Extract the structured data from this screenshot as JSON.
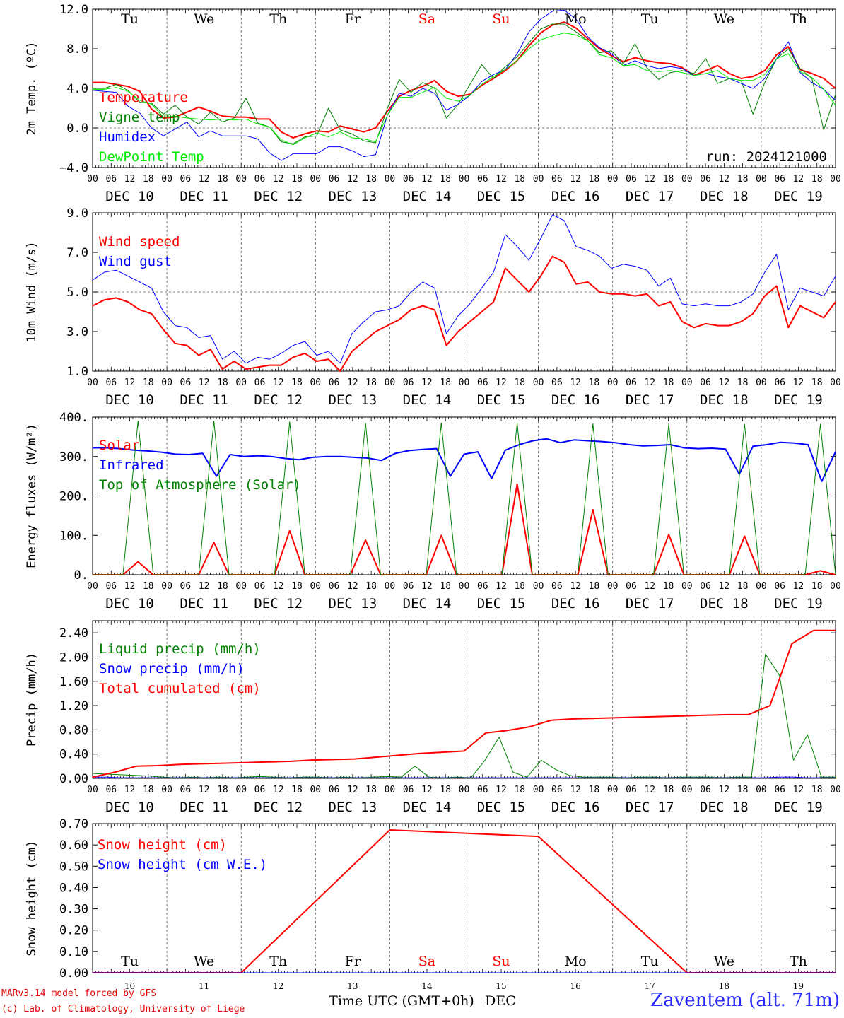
{
  "chart_data": [
    {
      "type": "line",
      "id": "temp",
      "ylabel": "2m Temp. (ºC)",
      "ylim": [
        -4,
        12
      ],
      "yticks": [
        "12.0",
        "8.0",
        "4.0",
        "0.0",
        "−4.0"
      ],
      "ytick_values": [
        12,
        8,
        4,
        0,
        -4
      ],
      "dashed_y": 0,
      "run_label": "run: 2024121000",
      "series": [
        {
          "name": "Temperature",
          "color": "#ff0000",
          "width": 2,
          "values": [
            4.6,
            4.6,
            4.4,
            4.2,
            3.7,
            1.9,
            1.0,
            1.1,
            1.6,
            2.1,
            1.7,
            1.2,
            1.1,
            1.1,
            0.9,
            0.9,
            -0.4,
            -1.0,
            -0.6,
            -0.3,
            -0.4,
            0.2,
            -0.1,
            -0.4,
            0.0,
            1.7,
            3.2,
            3.8,
            4.2,
            4.8,
            3.7,
            3.2,
            3.4,
            4.3,
            5.0,
            5.8,
            6.8,
            8.3,
            9.6,
            10.4,
            10.7,
            10.1,
            9.0,
            8.0,
            7.3,
            6.7,
            7.1,
            6.8,
            6.6,
            6.5,
            6.1,
            5.3,
            5.8,
            6.3,
            5.5,
            5.0,
            5.2,
            5.8,
            7.4,
            8.2,
            5.9,
            5.5,
            5.0,
            4.0
          ]
        },
        {
          "name": "Vigne temp",
          "color": "#008000",
          "width": 1,
          "values": [
            4.0,
            4.0,
            4.4,
            3.8,
            2.6,
            2.5,
            1.4,
            2.3,
            1.1,
            0.4,
            1.6,
            0.6,
            1.0,
            3.0,
            0.5,
            0.1,
            -1.4,
            -1.6,
            -0.9,
            -0.8,
            2.0,
            -0.2,
            -0.6,
            -1.3,
            -1.5,
            2.0,
            4.9,
            3.6,
            4.6,
            4.0,
            1.0,
            2.4,
            4.4,
            6.4,
            5.0,
            6.2,
            7.2,
            8.6,
            10.0,
            10.5,
            10.5,
            9.7,
            8.8,
            7.6,
            7.8,
            6.5,
            8.5,
            6.1,
            4.9,
            5.6,
            5.8,
            5.5,
            7.0,
            4.5,
            5.0,
            4.8,
            1.4,
            4.6,
            7.0,
            8.0,
            6.0,
            5.0,
            -0.2,
            3.4
          ]
        },
        {
          "name": "Humidex",
          "color": "#0000ff",
          "width": 1,
          "values": [
            3.8,
            3.7,
            3.6,
            2.2,
            1.5,
            0.0,
            -0.8,
            -0.1,
            0.6,
            -0.9,
            -0.3,
            -0.8,
            -0.8,
            -0.8,
            -1.1,
            -2.5,
            -3.3,
            -2.6,
            -2.6,
            -2.6,
            -1.9,
            -1.9,
            -2.3,
            -2.9,
            -2.7,
            1.3,
            3.5,
            3.2,
            4.0,
            3.5,
            1.8,
            2.4,
            3.3,
            4.7,
            5.4,
            5.9,
            7.5,
            9.7,
            11.0,
            11.8,
            11.9,
            11.0,
            9.2,
            8.1,
            7.5,
            6.3,
            6.8,
            6.3,
            6.0,
            6.2,
            6.0,
            5.3,
            5.5,
            5.2,
            5.0,
            4.5,
            4.0,
            5.0,
            7.0,
            8.7,
            5.6,
            4.6,
            3.9,
            2.8
          ]
        },
        {
          "name": "DewPoint Temp",
          "color": "#00ee00",
          "width": 1,
          "values": [
            3.9,
            3.9,
            4.1,
            3.7,
            2.8,
            2.4,
            1.1,
            1.2,
            1.0,
            0.9,
            0.8,
            0.9,
            0.8,
            0.9,
            0.4,
            0.1,
            -1.2,
            -1.7,
            -1.0,
            -0.5,
            -0.9,
            -0.4,
            -1.0,
            -1.1,
            -1.4,
            1.3,
            3.1,
            3.1,
            3.6,
            4.1,
            3.0,
            2.7,
            3.3,
            4.4,
            5.2,
            5.9,
            6.8,
            8.0,
            8.9,
            9.3,
            9.6,
            9.4,
            8.8,
            7.4,
            7.1,
            6.3,
            6.4,
            5.8,
            5.7,
            5.8,
            5.6,
            5.3,
            5.5,
            5.8,
            5.0,
            4.8,
            4.8,
            5.4,
            7.0,
            7.5,
            5.7,
            5.1,
            3.9,
            2.3
          ]
        }
      ]
    },
    {
      "type": "line",
      "id": "wind",
      "ylabel": "10m Wind (m/s)",
      "ylim": [
        1,
        9
      ],
      "yticks": [
        "9.0",
        "7.0",
        "5.0",
        "3.0",
        "1.0"
      ],
      "ytick_values": [
        9,
        7,
        5,
        3,
        1
      ],
      "dashed_y": 5,
      "series": [
        {
          "name": "Wind speed",
          "color": "#ff0000",
          "width": 2,
          "values": [
            4.3,
            4.6,
            4.7,
            4.5,
            4.1,
            3.9,
            3.1,
            2.4,
            2.3,
            1.8,
            2.1,
            1.1,
            1.5,
            1.1,
            1.2,
            1.3,
            1.3,
            1.7,
            1.9,
            1.5,
            1.6,
            1.0,
            2.0,
            2.5,
            3.0,
            3.3,
            3.6,
            4.1,
            4.3,
            4.1,
            2.3,
            3.0,
            3.5,
            4.0,
            4.5,
            6.2,
            5.6,
            5.0,
            5.8,
            6.8,
            6.5,
            5.4,
            5.5,
            5.0,
            4.9,
            4.9,
            4.8,
            4.9,
            4.3,
            4.5,
            3.5,
            3.2,
            3.4,
            3.3,
            3.3,
            3.5,
            3.9,
            4.8,
            5.3,
            3.2,
            4.3,
            4.0,
            3.7,
            4.5
          ]
        },
        {
          "name": "Wind gust",
          "color": "#0000ff",
          "width": 1,
          "values": [
            5.6,
            6.0,
            6.1,
            5.8,
            5.5,
            5.2,
            4.0,
            3.3,
            3.2,
            2.7,
            2.8,
            1.6,
            2.0,
            1.4,
            1.7,
            1.6,
            1.9,
            2.3,
            2.5,
            1.8,
            2.0,
            1.4,
            2.9,
            3.5,
            4.0,
            4.1,
            4.3,
            5.0,
            5.5,
            5.2,
            2.9,
            3.8,
            4.4,
            5.2,
            6.0,
            7.9,
            7.3,
            6.6,
            7.7,
            8.9,
            8.6,
            7.3,
            7.1,
            6.8,
            6.2,
            6.4,
            6.3,
            6.1,
            5.3,
            5.7,
            4.4,
            4.3,
            4.4,
            4.3,
            4.3,
            4.5,
            4.9,
            6.0,
            6.9,
            4.1,
            5.2,
            5.0,
            4.8,
            5.8
          ]
        }
      ]
    },
    {
      "type": "line",
      "id": "flux",
      "ylabel": "Energy fluxes (W/m²)",
      "ylim": [
        0,
        400
      ],
      "yticks": [
        "400.",
        "300.",
        "200.",
        "100.",
        "0."
      ],
      "ytick_values": [
        400,
        300,
        200,
        100,
        0
      ],
      "series": [
        {
          "name": "Solar",
          "color": "#ff0000",
          "width": 2,
          "values": [
            0,
            0,
            0,
            33,
            0,
            0,
            0,
            0,
            82,
            0,
            0,
            0,
            0,
            112,
            0,
            0,
            0,
            0,
            88,
            0,
            0,
            0,
            0,
            100,
            0,
            0,
            0,
            0,
            230,
            0,
            0,
            0,
            0,
            165,
            0,
            0,
            0,
            0,
            102,
            0,
            0,
            0,
            0,
            98,
            0,
            0,
            0,
            0,
            10,
            0
          ]
        },
        {
          "name": "Infrared",
          "color": "#0000ff",
          "width": 2,
          "values": [
            322,
            322,
            320,
            316,
            314,
            311,
            306,
            305,
            308,
            250,
            305,
            300,
            302,
            300,
            295,
            292,
            298,
            300,
            300,
            298,
            296,
            290,
            308,
            315,
            318,
            320,
            250,
            306,
            312,
            244,
            316,
            330,
            340,
            345,
            335,
            342,
            340,
            338,
            335,
            330,
            327,
            328,
            330,
            322,
            320,
            321,
            319,
            255,
            326,
            330,
            336,
            334,
            330,
            237,
            312
          ]
        },
        {
          "name": "Top of Atmosphere (Solar)",
          "color": "#008000",
          "width": 1,
          "values": [
            0,
            0,
            0,
            390,
            0,
            0,
            0,
            0,
            390,
            0,
            0,
            0,
            0,
            388,
            0,
            0,
            0,
            0,
            385,
            0,
            0,
            0,
            0,
            385,
            0,
            0,
            0,
            0,
            385,
            0,
            0,
            0,
            0,
            383,
            0,
            0,
            0,
            0,
            383,
            0,
            0,
            0,
            0,
            382,
            0,
            0,
            0,
            0,
            382,
            0
          ]
        }
      ]
    },
    {
      "type": "line",
      "id": "precip",
      "ylabel": "Precip (mm/h)",
      "ylim": [
        0,
        2.6
      ],
      "yticks": [
        "2.40",
        "2.00",
        "1.60",
        "1.20",
        "0.80",
        "0.40",
        "0.00"
      ],
      "ytick_values": [
        2.4,
        2.0,
        1.6,
        1.2,
        0.8,
        0.4,
        0.0
      ],
      "series": [
        {
          "name": "Liquid precip (mm/h)",
          "color": "#008000",
          "width": 1,
          "values": [
            0.08,
            0.07,
            0.06,
            0.05,
            0.04,
            0.02,
            0.01,
            0.02,
            0.01,
            0.02,
            0.01,
            0.02,
            0.03,
            0.02,
            0.01,
            0.02,
            0.02,
            0.01,
            0.02,
            0.01,
            0.02,
            0.03,
            0.02,
            0.2,
            0.02,
            0.01,
            0.02,
            0.01,
            0.3,
            0.68,
            0.1,
            0.02,
            0.3,
            0.15,
            0.05,
            0.02,
            0.02,
            0.02,
            0.01,
            0.02,
            0.02,
            0.01,
            0.02,
            0.02,
            0.02,
            0.01,
            0.02,
            0.02,
            2.05,
            1.7,
            0.3,
            0.72,
            0.02,
            0.02
          ]
        },
        {
          "name": "Snow precip (mm/h)",
          "color": "#0000ff",
          "width": 1,
          "values": [
            0.02,
            0.02,
            0.01,
            0.01,
            0.01,
            0.01,
            0.01,
            0.01,
            0.01,
            0.01,
            0.01,
            0.01,
            0.01,
            0.01,
            0.01,
            0.01,
            0.01,
            0.01,
            0.01,
            0.01,
            0.01,
            0.01,
            0.01,
            0.01,
            0.01,
            0.01,
            0.01,
            0.01,
            0.01,
            0.01,
            0.01,
            0.01,
            0.01,
            0.01,
            0.01,
            0.01,
            0.01,
            0.01,
            0.01,
            0.01,
            0.01,
            0.01,
            0.01,
            0.01,
            0.01,
            0.01,
            0.01,
            0.01,
            0.01,
            0.02,
            0.02,
            0.01,
            0.01,
            0.01
          ]
        },
        {
          "name": "Total cumulated (cm)",
          "color": "#ff0000",
          "width": 2,
          "values": [
            0.02,
            0.1,
            0.2,
            0.21,
            0.23,
            0.24,
            0.25,
            0.26,
            0.27,
            0.28,
            0.3,
            0.31,
            0.32,
            0.35,
            0.38,
            0.41,
            0.43,
            0.45,
            0.75,
            0.79,
            0.85,
            0.96,
            0.98,
            0.99,
            1.0,
            1.01,
            1.02,
            1.03,
            1.04,
            1.05,
            1.05,
            1.2,
            2.22,
            2.44,
            2.44
          ]
        }
      ]
    },
    {
      "type": "line",
      "id": "snow",
      "ylabel": "Snow height (cm)",
      "ylim": [
        0,
        0.7
      ],
      "yticks": [
        "0.70",
        "0.60",
        "0.50",
        "0.40",
        "0.30",
        "0.20",
        "0.10",
        "0.00"
      ],
      "ytick_values": [
        0.7,
        0.6,
        0.5,
        0.4,
        0.3,
        0.2,
        0.1,
        0.0
      ],
      "series": [
        {
          "name": "Snow height (cm)",
          "color": "#ff0000",
          "width": 2,
          "values": [
            0,
            0,
            0.67,
            0.64,
            0,
            0
          ]
        },
        {
          "name": "Snow height (cm W.E.)",
          "color": "#0000ff",
          "width": 1,
          "values": [
            0,
            0
          ]
        }
      ]
    }
  ],
  "days_top": [
    {
      "label": "Tu",
      "color": "#000000"
    },
    {
      "label": "We",
      "color": "#000000"
    },
    {
      "label": "Th",
      "color": "#000000"
    },
    {
      "label": "Fr",
      "color": "#000000"
    },
    {
      "label": "Sa",
      "color": "#ff0000"
    },
    {
      "label": "Su",
      "color": "#ff0000"
    },
    {
      "label": "Mo",
      "color": "#000000"
    },
    {
      "label": "Tu",
      "color": "#000000"
    },
    {
      "label": "We",
      "color": "#000000"
    },
    {
      "label": "Th",
      "color": "#000000"
    }
  ],
  "date_labels": [
    "DEC 10",
    "DEC 11",
    "DEC 12",
    "DEC 13",
    "DEC 14",
    "DEC 15",
    "DEC 16",
    "DEC 17",
    "DEC 18",
    "DEC 19"
  ],
  "hour_labels": [
    "00",
    "06",
    "12",
    "18"
  ],
  "bottom_day_numbers": [
    "10",
    "11",
    "12",
    "13",
    "14",
    "15",
    "16",
    "17",
    "18",
    "19"
  ],
  "xlabel": "Time UTC (GMT+0h)",
  "xlabel_month": "DEC",
  "credit_line1": "MARv3.14 model forced by GFS",
  "credit_line2": "(c) Lab. of Climatology, University of Liege",
  "station": "Zaventem (alt. 71m)"
}
